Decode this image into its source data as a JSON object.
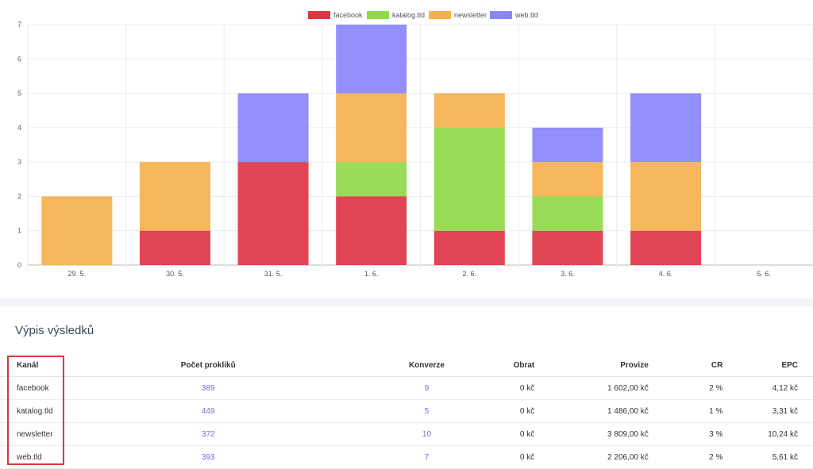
{
  "chart_data": {
    "type": "bar",
    "stacked": true,
    "categories": [
      "29. 5.",
      "30. 5.",
      "31. 5.",
      "1. 6.",
      "2. 6.",
      "3. 6.",
      "4. 6.",
      "5. 6."
    ],
    "series": [
      {
        "name": "facebook",
        "color": "#dc3545",
        "values": [
          0,
          1,
          3,
          2,
          1,
          1,
          1,
          0
        ]
      },
      {
        "name": "katalog.tld",
        "color": "#8fd94a",
        "values": [
          0,
          0,
          0,
          1,
          3,
          1,
          0,
          0
        ]
      },
      {
        "name": "newsletter",
        "color": "#f5b04e",
        "values": [
          2,
          2,
          0,
          2,
          1,
          1,
          2,
          0
        ]
      },
      {
        "name": "web.tld",
        "color": "#8a86fb",
        "values": [
          0,
          0,
          2,
          2,
          0,
          1,
          2,
          0
        ]
      }
    ],
    "ylim": [
      0,
      7
    ],
    "yticks": [
      0,
      1,
      2,
      3,
      4,
      5,
      6,
      7
    ],
    "grid": true,
    "legend": "top"
  },
  "results": {
    "title": "Výpis výsledků",
    "columns": [
      "Kanál",
      "Počet prokliků",
      "Konverze",
      "Obrat",
      "Provize",
      "CR",
      "EPC"
    ],
    "rows": [
      [
        "facebook",
        "389",
        "9",
        "0 kč",
        "1 602,00 kč",
        "2 %",
        "4,12 kč"
      ],
      [
        "katalog.tld",
        "449",
        "5",
        "0 kč",
        "1 486,00 kč",
        "1 %",
        "3,31 kč"
      ],
      [
        "newsletter",
        "372",
        "10",
        "0 kč",
        "3 809,00 kč",
        "3 %",
        "10,24 kč"
      ],
      [
        "web.tld",
        "393",
        "7",
        "0 kč",
        "2 206,00 kč",
        "2 %",
        "5,61 kč"
      ]
    ]
  },
  "colors": {
    "link": "#6f6cf0",
    "highlight_box": "#d93a3a"
  }
}
